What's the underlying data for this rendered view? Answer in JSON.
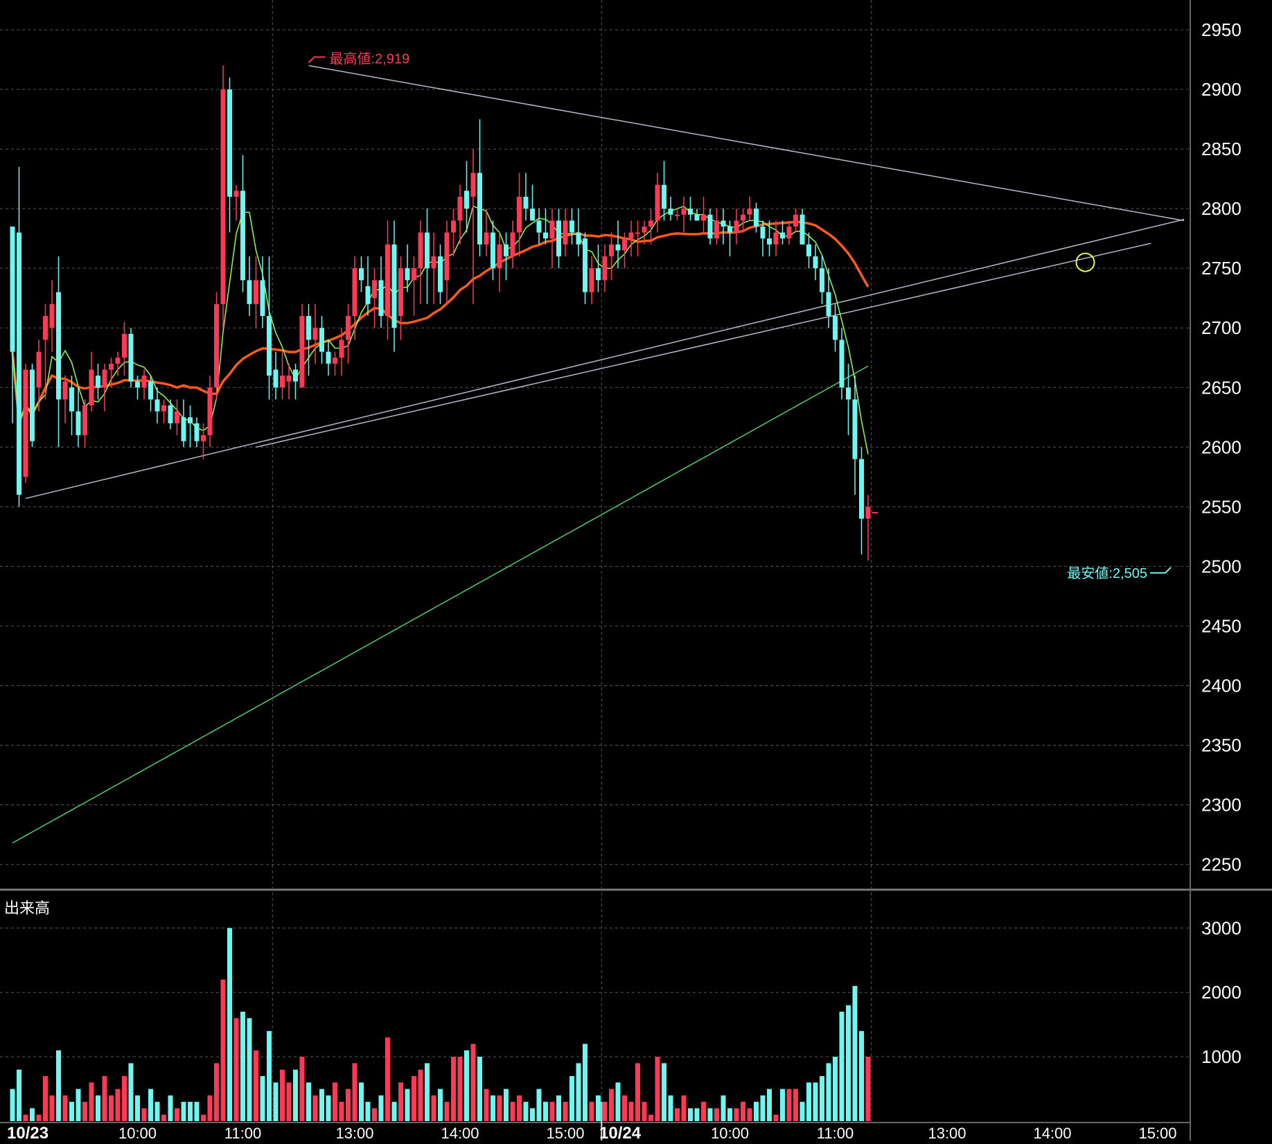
{
  "chart_data": {
    "type": "candlestick",
    "price_axis": {
      "ylim": [
        2230,
        2975
      ],
      "ticks": [
        2250,
        2300,
        2350,
        2400,
        2450,
        2500,
        2550,
        2600,
        2650,
        2700,
        2750,
        2800,
        2850,
        2900,
        2950
      ],
      "grid": true
    },
    "volume_panel": {
      "label": "出来高",
      "ylim": [
        0,
        3100
      ],
      "ticks": [
        1000,
        2000,
        3000
      ]
    },
    "x_axis": {
      "labels": [
        {
          "text": "10/23",
          "bar": 0,
          "date": true
        },
        {
          "text": "10:00",
          "bar": 19
        },
        {
          "text": "11:00",
          "bar": 35
        },
        {
          "text": "13:00",
          "bar": 52
        },
        {
          "text": "14:00",
          "bar": 68
        },
        {
          "text": "15:00",
          "bar": 84
        },
        {
          "text": "10/24",
          "bar": 90,
          "date": true
        },
        {
          "text": "10:00",
          "bar": 109
        },
        {
          "text": "11:00",
          "bar": 125
        },
        {
          "text": "13:00",
          "bar": 142
        },
        {
          "text": "14:00",
          "bar": 158
        },
        {
          "text": "15:00",
          "bar": 174
        }
      ],
      "separators": [
        40,
        90,
        131
      ]
    },
    "colors": {
      "up": "#fc3a56",
      "down": "#6ef7f0",
      "ma_short": "#8cf24a",
      "ma_mid": "#ff5a1e",
      "ma_long": "#4cc26a",
      "trendline": "#b9b9cc",
      "grid": "#555555",
      "annot_high": "#fc3a56",
      "annot_low": "#6ef7f0",
      "circle": "#e8f25a"
    },
    "annotations": [
      {
        "text": "最高値:2,919",
        "bar": 45,
        "price": 2919,
        "kind": "high"
      },
      {
        "text": "最安値:2,505",
        "bar": 176,
        "price": 2505,
        "kind": "low"
      }
    ],
    "last_price_marker": 2545,
    "trendlines": [
      {
        "from": {
          "bar": 2,
          "price": 2557
        },
        "to": {
          "bar": 178,
          "price": 2791
        }
      },
      {
        "from": {
          "bar": 45,
          "price": 2920
        },
        "to": {
          "bar": 178,
          "price": 2790
        }
      },
      {
        "from": {
          "bar": 37,
          "price": 2600
        },
        "to": {
          "bar": 173,
          "price": 2771
        }
      }
    ],
    "circle_mark": {
      "bar": 163,
      "price": 2755
    },
    "candles": [
      [
        2785,
        2785,
        2620,
        2680,
        5
      ],
      [
        2780,
        2835,
        2550,
        2560,
        8
      ],
      [
        2575,
        2670,
        2570,
        2665,
        1
      ],
      [
        2665,
        2670,
        2600,
        2605,
        2
      ],
      [
        2650,
        2690,
        2630,
        2680,
        1
      ],
      [
        2690,
        2720,
        2640,
        2710,
        7
      ],
      [
        2700,
        2740,
        2680,
        2720,
        4
      ],
      [
        2730,
        2760,
        2600,
        2640,
        11
      ],
      [
        2640,
        2660,
        2620,
        2655,
        4
      ],
      [
        2650,
        2660,
        2610,
        2630,
        3
      ],
      [
        2630,
        2650,
        2600,
        2610,
        5
      ],
      [
        2610,
        2640,
        2600,
        2635,
        3
      ],
      [
        2635,
        2680,
        2630,
        2665,
        6
      ],
      [
        2660,
        2670,
        2640,
        2650,
        4
      ],
      [
        2650,
        2670,
        2630,
        2665,
        7
      ],
      [
        2665,
        2675,
        2650,
        2670,
        4
      ],
      [
        2670,
        2680,
        2660,
        2675,
        5
      ],
      [
        2675,
        2705,
        2660,
        2695,
        7
      ],
      [
        2695,
        2700,
        2650,
        2655,
        9
      ],
      [
        2655,
        2660,
        2640,
        2650,
        4
      ],
      [
        2650,
        2665,
        2640,
        2660,
        2
      ],
      [
        2655,
        2660,
        2630,
        2640,
        5
      ],
      [
        2640,
        2650,
        2620,
        2630,
        3
      ],
      [
        2630,
        2640,
        2620,
        2635,
        1
      ],
      [
        2635,
        2640,
        2615,
        2620,
        4
      ],
      [
        2620,
        2640,
        2610,
        2630,
        2
      ],
      [
        2625,
        2640,
        2600,
        2605,
        3
      ],
      [
        2625,
        2635,
        2600,
        2620,
        3
      ],
      [
        2620,
        2625,
        2600,
        2605,
        3
      ],
      [
        2605,
        2620,
        2590,
        2610,
        1
      ],
      [
        2610,
        2660,
        2600,
        2650,
        4
      ],
      [
        2650,
        2730,
        2640,
        2720,
        9
      ],
      [
        2720,
        2920,
        2700,
        2900,
        22
      ],
      [
        2900,
        2910,
        2780,
        2810,
        30
      ],
      [
        2810,
        2820,
        2790,
        2815,
        16
      ],
      [
        2815,
        2845,
        2730,
        2740,
        17
      ],
      [
        2740,
        2760,
        2710,
        2720,
        16
      ],
      [
        2720,
        2760,
        2700,
        2740,
        11
      ],
      [
        2740,
        2760,
        2700,
        2710,
        7
      ],
      [
        2710,
        2760,
        2640,
        2660,
        14
      ],
      [
        2665,
        2680,
        2640,
        2650,
        6
      ],
      [
        2650,
        2680,
        2640,
        2660,
        8
      ],
      [
        2655,
        2670,
        2640,
        2660,
        6
      ],
      [
        2665,
        2670,
        2640,
        2655,
        8
      ],
      [
        2650,
        2720,
        2650,
        2710,
        10
      ],
      [
        2710,
        2720,
        2660,
        2690,
        6
      ],
      [
        2690,
        2720,
        2670,
        2700,
        4
      ],
      [
        2700,
        2710,
        2670,
        2680,
        5
      ],
      [
        2680,
        2690,
        2660,
        2670,
        4
      ],
      [
        2670,
        2680,
        2660,
        2675,
        6
      ],
      [
        2675,
        2700,
        2660,
        2690,
        3
      ],
      [
        2690,
        2720,
        2670,
        2710,
        5
      ],
      [
        2710,
        2760,
        2690,
        2750,
        9
      ],
      [
        2750,
        2760,
        2730,
        2740,
        6
      ],
      [
        2735,
        2760,
        2710,
        2720,
        3
      ],
      [
        2725,
        2750,
        2700,
        2740,
        2
      ],
      [
        2740,
        2760,
        2700,
        2710,
        4
      ],
      [
        2710,
        2790,
        2690,
        2770,
        13
      ],
      [
        2770,
        2790,
        2680,
        2700,
        3
      ],
      [
        2710,
        2760,
        2690,
        2750,
        6
      ],
      [
        2750,
        2770,
        2730,
        2740,
        5
      ],
      [
        2740,
        2760,
        2710,
        2750,
        7
      ],
      [
        2750,
        2790,
        2720,
        2780,
        8
      ],
      [
        2780,
        2800,
        2720,
        2750,
        9
      ],
      [
        2750,
        2780,
        2720,
        2760,
        4
      ],
      [
        2760,
        2770,
        2720,
        2730,
        5
      ],
      [
        2740,
        2790,
        2720,
        2780,
        3
      ],
      [
        2780,
        2800,
        2760,
        2790,
        10
      ],
      [
        2790,
        2820,
        2770,
        2810,
        10
      ],
      [
        2815,
        2840,
        2780,
        2800,
        11
      ],
      [
        2810,
        2850,
        2720,
        2830,
        12
      ],
      [
        2830,
        2875,
        2760,
        2770,
        10
      ],
      [
        2770,
        2800,
        2760,
        2780,
        5
      ],
      [
        2780,
        2790,
        2740,
        2750,
        4
      ],
      [
        2750,
        2780,
        2730,
        2770,
        4
      ],
      [
        2770,
        2780,
        2740,
        2760,
        5
      ],
      [
        2760,
        2790,
        2750,
        2780,
        3
      ],
      [
        2780,
        2830,
        2760,
        2810,
        4
      ],
      [
        2810,
        2830,
        2790,
        2800,
        3
      ],
      [
        2800,
        2820,
        2790,
        2790,
        2
      ],
      [
        2790,
        2800,
        2770,
        2780,
        5
      ],
      [
        2780,
        2800,
        2770,
        2775,
        3
      ],
      [
        2775,
        2800,
        2750,
        2790,
        3
      ],
      [
        2790,
        2800,
        2750,
        2760,
        4
      ],
      [
        2770,
        2800,
        2760,
        2790,
        3
      ],
      [
        2790,
        2800,
        2770,
        2780,
        7
      ],
      [
        2780,
        2800,
        2760,
        2770,
        9
      ],
      [
        2775,
        2780,
        2720,
        2730,
        12
      ],
      [
        2730,
        2760,
        2720,
        2750,
        3
      ],
      [
        2750,
        2770,
        2730,
        2740,
        4
      ],
      [
        2740,
        2770,
        2730,
        2760,
        3
      ],
      [
        2760,
        2780,
        2740,
        2770,
        5
      ],
      [
        2770,
        2790,
        2750,
        2765,
        6
      ],
      [
        2765,
        2780,
        2750,
        2775,
        4
      ],
      [
        2775,
        2790,
        2760,
        2780,
        3
      ],
      [
        2780,
        2790,
        2760,
        2780,
        9
      ],
      [
        2780,
        2790,
        2770,
        2785,
        3
      ],
      [
        2785,
        2800,
        2770,
        2790,
        1
      ],
      [
        2790,
        2830,
        2780,
        2820,
        10
      ],
      [
        2820,
        2840,
        2790,
        2800,
        9
      ],
      [
        2800,
        2810,
        2790,
        2795,
        4
      ],
      [
        2795,
        2800,
        2790,
        2795,
        2
      ],
      [
        2795,
        2810,
        2780,
        2800,
        4
      ],
      [
        2800,
        2810,
        2790,
        2795,
        2
      ],
      [
        2795,
        2800,
        2790,
        2790,
        2
      ],
      [
        2790,
        2810,
        2780,
        2795,
        3
      ],
      [
        2795,
        2800,
        2770,
        2775,
        2
      ],
      [
        2775,
        2800,
        2770,
        2790,
        2
      ],
      [
        2790,
        2800,
        2770,
        2785,
        4
      ],
      [
        2785,
        2790,
        2760,
        2780,
        2
      ],
      [
        2780,
        2800,
        2770,
        2790,
        2
      ],
      [
        2790,
        2800,
        2780,
        2795,
        3
      ],
      [
        2795,
        2810,
        2790,
        2800,
        2
      ],
      [
        2800,
        2805,
        2780,
        2785,
        3
      ],
      [
        2785,
        2790,
        2760,
        2775,
        4
      ],
      [
        2775,
        2790,
        2760,
        2770,
        5
      ],
      [
        2770,
        2790,
        2760,
        2780,
        1
      ],
      [
        2780,
        2790,
        2770,
        2775,
        5
      ],
      [
        2775,
        2790,
        2770,
        2785,
        5
      ],
      [
        2785,
        2800,
        2780,
        2795,
        5
      ],
      [
        2795,
        2800,
        2770,
        2770,
        3
      ],
      [
        2770,
        2780,
        2750,
        2760,
        6
      ],
      [
        2760,
        2770,
        2740,
        2750,
        6
      ],
      [
        2750,
        2760,
        2720,
        2730,
        7
      ],
      [
        2730,
        2750,
        2700,
        2710,
        9
      ],
      [
        2710,
        2720,
        2680,
        2690,
        10
      ],
      [
        2690,
        2700,
        2640,
        2650,
        17
      ],
      [
        2650,
        2670,
        2610,
        2640,
        18
      ],
      [
        2640,
        2660,
        2560,
        2590,
        21
      ],
      [
        2590,
        2600,
        2510,
        2540,
        14
      ],
      [
        2540,
        2560,
        2505,
        2550,
        10
      ]
    ],
    "ma_short": [],
    "ma_mid": [],
    "ma_long": []
  }
}
